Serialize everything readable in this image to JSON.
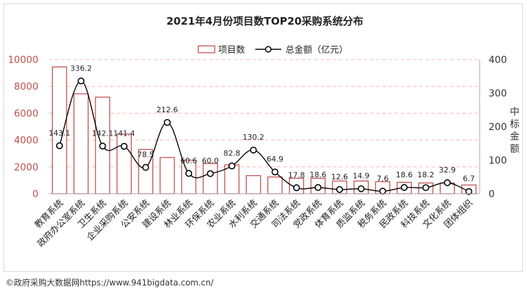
{
  "chart_data": {
    "type": "bar",
    "title": "2021年4月份项目数TOP20采购系统分布",
    "categories": [
      "教育系统",
      "政府办公室系统",
      "卫生系统",
      "企业采购系统",
      "公安系统",
      "建设系统",
      "林业系统",
      "环保系统",
      "农业系统",
      "水利系统",
      "交通系统",
      "司法系统",
      "党政系统",
      "体育系统",
      "质监系统",
      "税务系统",
      "民政系统",
      "科技系统",
      "文化系统",
      "团体组织"
    ],
    "series": [
      {
        "name": "项目数",
        "type": "bar",
        "axis": "left",
        "color": "#c0504d",
        "values": [
          9450,
          7450,
          7200,
          4450,
          3300,
          2700,
          2500,
          2250,
          2150,
          1350,
          1250,
          1150,
          1150,
          950,
          950,
          900,
          850,
          800,
          800,
          650
        ]
      },
      {
        "name": "总金额（亿元）",
        "type": "line",
        "axis": "right",
        "color": "#000000",
        "values": [
          143.1,
          336.2,
          142.1,
          141.4,
          78.5,
          212.6,
          60.6,
          60.0,
          82.8,
          130.2,
          64.9,
          17.8,
          18.6,
          12.6,
          14.9,
          7.6,
          18.6,
          18.2,
          32.9,
          6.7
        ],
        "labels": [
          "143.1",
          "336.2",
          "142.1",
          "141.4",
          "78.5",
          "212.6",
          "60.6",
          "60.0",
          "82.8",
          "130.2",
          "64.9",
          "17.8",
          "18.6",
          "12.6",
          "14.9",
          "7.6",
          "18.6",
          "18.2",
          "32.9",
          "6.7"
        ]
      }
    ],
    "y_left": {
      "ylim": [
        0,
        10000
      ],
      "ticks": [
        "0",
        "2000",
        "4000",
        "6000",
        "8000",
        "10000"
      ],
      "color": "#c0504d"
    },
    "y_right": {
      "ylim": [
        0,
        400
      ],
      "ticks": [
        "0",
        "100",
        "200",
        "300",
        "400"
      ],
      "label": "中标金额"
    },
    "legend_position": "top-center",
    "grid": "horizontal dashed",
    "line_labels": [
      "143.1",
      "336.2",
      "142.1",
      "141.4",
      "78.5",
      "212.6",
      "60.6",
      "60.0",
      "82.8",
      "130.2",
      "64.9",
      "17.8",
      "18.6",
      "12.6",
      "14.9",
      "7.6",
      "18.6",
      "18.2",
      "32.9",
      "6.7"
    ]
  },
  "credit": "©政府采购大数据网https://www.941bigdata.com.cn/"
}
